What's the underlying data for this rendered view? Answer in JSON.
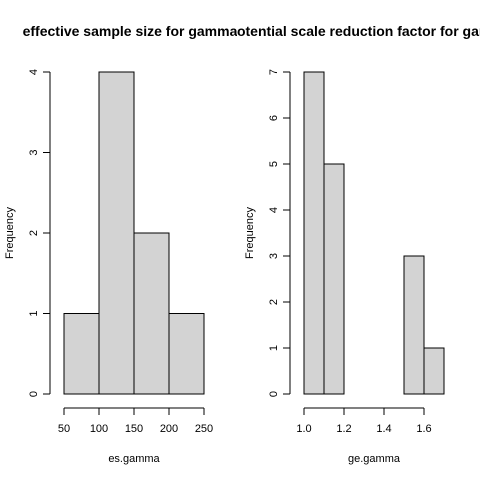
{
  "chart_data": [
    {
      "type": "bar",
      "title": "effective sample size for gamma",
      "xlabel": "es.gamma",
      "ylabel": "Frequency",
      "bins": [
        {
          "from": 50,
          "to": 100,
          "count": 1
        },
        {
          "from": 100,
          "to": 150,
          "count": 4
        },
        {
          "from": 150,
          "to": 200,
          "count": 2
        },
        {
          "from": 200,
          "to": 250,
          "count": 1
        }
      ],
      "xticks": [
        50,
        100,
        150,
        200,
        250
      ],
      "xtick_labels": [
        "50",
        "100",
        "150",
        "200",
        "250"
      ],
      "yticks": [
        0,
        1,
        2,
        3,
        4
      ],
      "ytick_labels": [
        "0",
        "1",
        "2",
        "3",
        "4"
      ],
      "xlim": [
        50,
        250
      ],
      "ylim": [
        0,
        4
      ],
      "grid": false,
      "bar_color": "#d3d3d3"
    },
    {
      "type": "bar",
      "title": "potential scale reduction factor for gamma",
      "xlabel": "ge.gamma",
      "ylabel": "Frequency",
      "bins": [
        {
          "from": 1.0,
          "to": 1.1,
          "count": 7
        },
        {
          "from": 1.1,
          "to": 1.2,
          "count": 5
        },
        {
          "from": 1.2,
          "to": 1.3,
          "count": 0
        },
        {
          "from": 1.3,
          "to": 1.4,
          "count": 0
        },
        {
          "from": 1.4,
          "to": 1.5,
          "count": 0
        },
        {
          "from": 1.5,
          "to": 1.6,
          "count": 3
        },
        {
          "from": 1.6,
          "to": 1.7,
          "count": 1
        }
      ],
      "xticks": [
        1.0,
        1.2,
        1.4,
        1.6
      ],
      "xtick_labels": [
        "1.0",
        "1.2",
        "1.4",
        "1.6"
      ],
      "yticks": [
        0,
        1,
        2,
        3,
        4,
        5,
        6,
        7
      ],
      "ytick_labels": [
        "0",
        "1",
        "2",
        "3",
        "4",
        "5",
        "6",
        "7"
      ],
      "xlim": [
        1.0,
        1.7
      ],
      "ylim": [
        0,
        7
      ],
      "grid": false,
      "bar_color": "#d3d3d3"
    }
  ]
}
